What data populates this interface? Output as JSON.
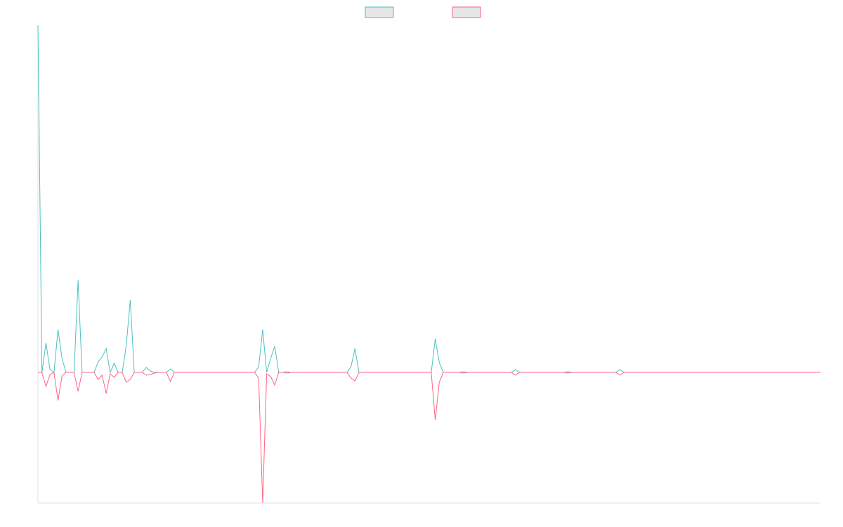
{
  "chart_data": {
    "type": "line",
    "ylim": [
      -186,
      494
    ],
    "legend": "top",
    "series": [
      {
        "color": "#4bc0c0",
        "values": [
          494,
          0,
          42,
          4,
          0,
          61,
          20,
          0,
          0,
          0,
          131,
          0,
          0,
          0,
          0,
          15,
          22,
          34,
          0,
          13,
          0,
          0,
          38,
          103,
          0,
          0,
          0,
          7,
          2,
          0,
          0,
          0,
          0,
          5,
          0,
          0,
          0,
          0,
          0,
          0,
          0,
          0,
          0,
          0,
          0,
          0,
          0,
          0,
          0,
          0,
          0,
          0,
          0,
          0,
          0,
          8,
          61,
          0,
          20,
          37,
          0,
          0,
          1,
          0,
          0,
          0,
          0,
          0,
          0,
          0,
          0,
          0,
          0,
          0,
          0,
          0,
          0,
          0,
          8,
          34,
          0,
          0,
          0,
          0,
          0,
          0,
          0,
          0,
          0,
          0,
          0,
          0,
          0,
          0,
          0,
          0,
          0,
          0,
          0,
          48,
          14,
          0,
          0,
          0,
          0,
          0,
          1,
          0,
          0,
          0,
          0,
          0,
          0,
          0,
          0,
          0,
          0,
          0,
          0,
          4,
          0,
          0,
          0,
          0,
          0,
          0,
          0,
          0,
          0,
          0,
          0,
          0,
          1,
          0,
          0,
          0,
          0,
          0,
          0,
          0,
          0,
          0,
          0,
          0,
          0,
          4,
          0,
          0,
          0,
          0,
          0,
          0,
          0,
          0,
          0,
          0,
          0,
          0,
          0,
          0,
          0,
          0,
          0,
          0,
          0,
          0,
          0,
          0,
          0,
          0,
          0,
          0,
          0,
          0,
          0,
          0,
          0,
          0,
          0,
          0,
          0,
          0,
          0,
          0,
          0,
          0,
          0,
          0,
          0,
          0,
          0,
          0,
          0,
          0,
          0,
          0
        ]
      },
      {
        "color": "#ff6384",
        "values": [
          0,
          0,
          -20,
          -3,
          0,
          -40,
          -5,
          0,
          0,
          0,
          -27,
          0,
          0,
          0,
          0,
          -10,
          -4,
          -30,
          -2,
          -7,
          0,
          0,
          -14,
          -10,
          0,
          0,
          0,
          -4,
          -3,
          -1,
          0,
          0,
          0,
          -13,
          0,
          0,
          0,
          0,
          0,
          0,
          0,
          0,
          0,
          0,
          0,
          0,
          0,
          0,
          0,
          0,
          0,
          0,
          0,
          0,
          0,
          -8,
          -186,
          -2,
          -6,
          -18,
          0,
          0,
          -1,
          0,
          0,
          0,
          0,
          0,
          0,
          0,
          0,
          0,
          0,
          0,
          0,
          0,
          0,
          0,
          -8,
          -12,
          0,
          0,
          0,
          0,
          0,
          0,
          0,
          0,
          0,
          0,
          0,
          0,
          0,
          0,
          0,
          0,
          0,
          0,
          0,
          -68,
          -14,
          0,
          0,
          0,
          0,
          0,
          -1,
          0,
          0,
          0,
          0,
          0,
          0,
          0,
          0,
          0,
          0,
          0,
          0,
          -4,
          0,
          0,
          0,
          0,
          0,
          0,
          0,
          0,
          0,
          0,
          0,
          0,
          -1,
          0,
          0,
          0,
          0,
          0,
          0,
          0,
          0,
          0,
          0,
          0,
          0,
          -4,
          0,
          0,
          0,
          0,
          0,
          0,
          0,
          0,
          0,
          0,
          0,
          0,
          0,
          0,
          0,
          0,
          0,
          0,
          0,
          0,
          0,
          0,
          0,
          0,
          0,
          0,
          0,
          0,
          0,
          0,
          0,
          0,
          0,
          0,
          0,
          0,
          0,
          0,
          0,
          0,
          0,
          0,
          0,
          0,
          0,
          0,
          0,
          0,
          0,
          0
        ]
      }
    ]
  }
}
